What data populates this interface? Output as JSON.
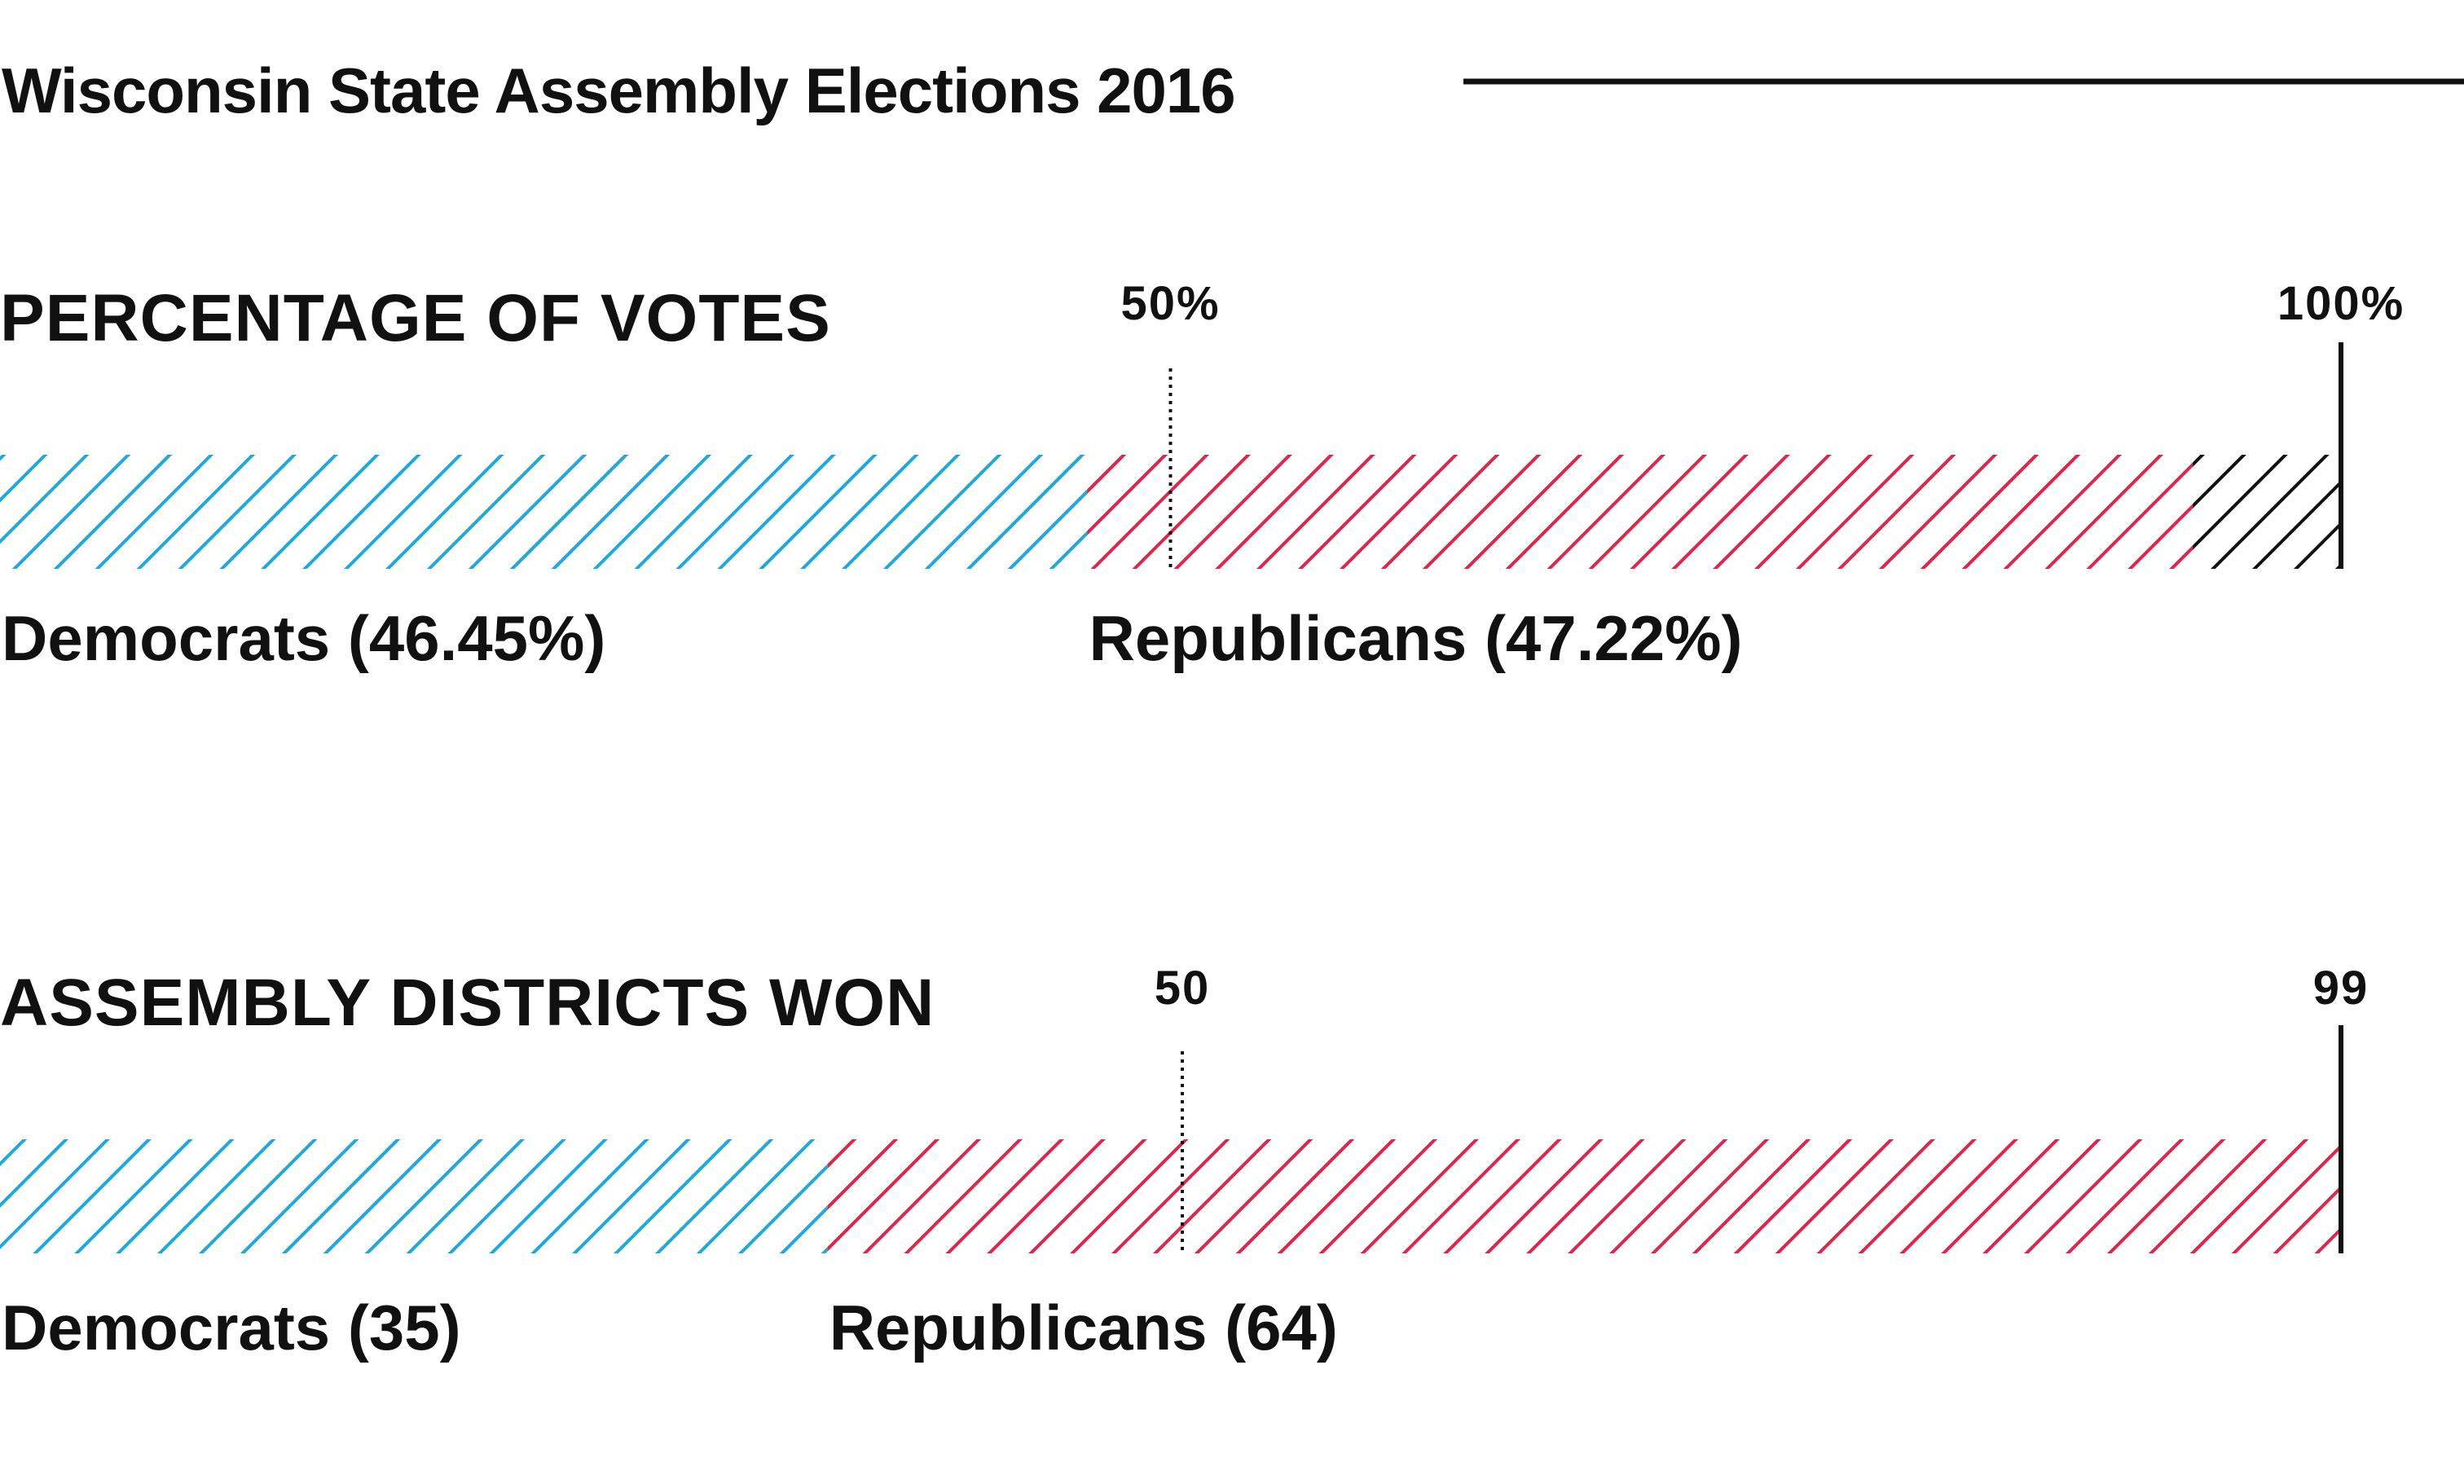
{
  "title": "Wisconsin State Assembly Elections 2016",
  "colors": {
    "democrats": "#1fa8df",
    "republicans": "#e0244a",
    "other": "#111111",
    "text": "#111111"
  },
  "chart_data": [
    {
      "type": "bar",
      "title": "PERCENTAGE OF VOTES",
      "xlim": [
        0,
        100
      ],
      "series": [
        {
          "name": "Democrats",
          "value": 46.45,
          "label": "Democrats (46.45%)"
        },
        {
          "name": "Republicans",
          "value": 47.22,
          "label": "Republicans (47.22%)"
        },
        {
          "value": 6.33
        }
      ],
      "reference_lines": [
        {
          "value": 50,
          "label": "50%",
          "style": "dotted"
        },
        {
          "value": 100,
          "label": "100%",
          "style": "solid"
        }
      ]
    },
    {
      "type": "bar",
      "title": "ASSEMBLY DISTRICTS WON",
      "xlim": [
        0,
        99
      ],
      "series": [
        {
          "name": "Democrats",
          "value": 35,
          "label": "Democrats (35)"
        },
        {
          "name": "Republicans",
          "value": 64,
          "label": "Republicans (64)"
        }
      ],
      "reference_lines": [
        {
          "value": 50,
          "label": "50",
          "style": "dotted"
        },
        {
          "value": 99,
          "label": "99",
          "style": "solid"
        }
      ]
    }
  ]
}
